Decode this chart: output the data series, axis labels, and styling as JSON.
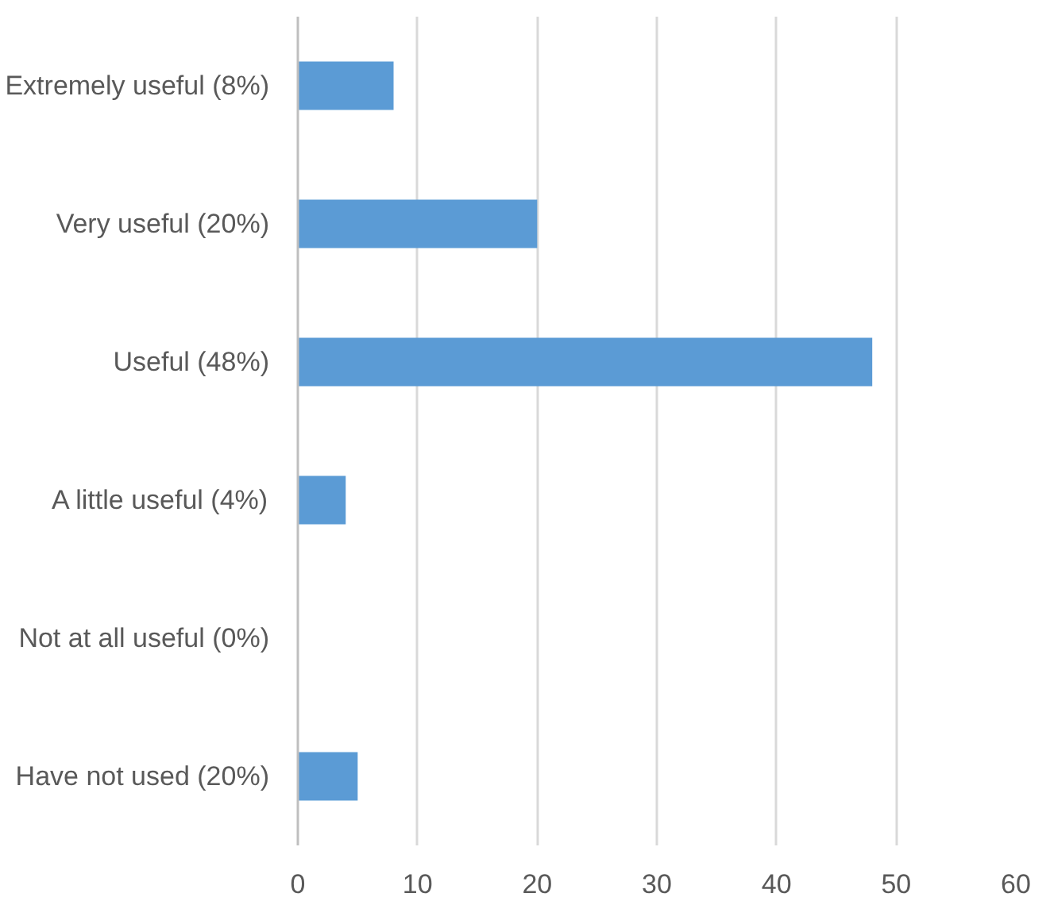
{
  "chart_data": {
    "type": "bar",
    "orientation": "horizontal",
    "categories": [
      "Extremely useful (8%)",
      "Very useful (20%)",
      "Useful (48%)",
      "A little useful (4%)",
      "Not at all useful (0%)",
      "Have not used (20%)"
    ],
    "values": [
      8,
      20,
      48,
      4,
      0,
      5
    ],
    "color": "#5b9bd5",
    "xlim": [
      0,
      60
    ],
    "xticks": [
      0,
      10,
      20,
      30,
      40,
      50,
      60
    ],
    "grid": "x"
  }
}
